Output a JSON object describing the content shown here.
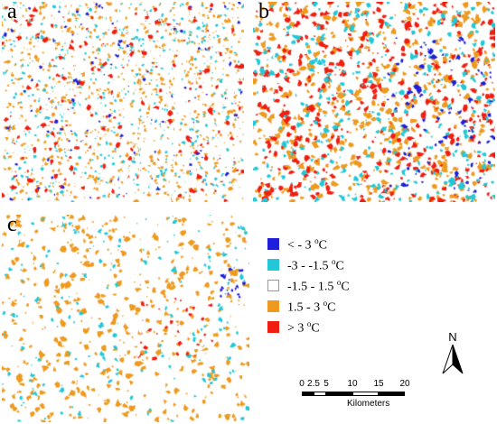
{
  "panels": [
    {
      "id": "a",
      "label": "a"
    },
    {
      "id": "b",
      "label": "b"
    },
    {
      "id": "c",
      "label": "c"
    }
  ],
  "legend": [
    {
      "text": "< - 3 ",
      "unit": "C",
      "sup": "o",
      "color": "#1f1fd8"
    },
    {
      "text": "-3 - -1.5 ",
      "unit": "C",
      "sup": "o",
      "color": "#22c8d8"
    },
    {
      "text": "-1.5 - 1.5 ",
      "unit": "C",
      "sup": "o",
      "color": "#ffffff"
    },
    {
      "text": "1.5 - 3 ",
      "unit": "C",
      "sup": "o",
      "color": "#ee9a1f"
    },
    {
      "text": "> 3 ",
      "unit": "C",
      "sup": "o",
      "color": "#f01e10"
    }
  ],
  "north_arrow": {
    "label": "N",
    "icon": "north-arrow-icon"
  },
  "scale_bar": {
    "ticks": [
      "0",
      "2.5",
      "5",
      "10",
      "15",
      "20"
    ],
    "unit": "Kilometers"
  }
}
